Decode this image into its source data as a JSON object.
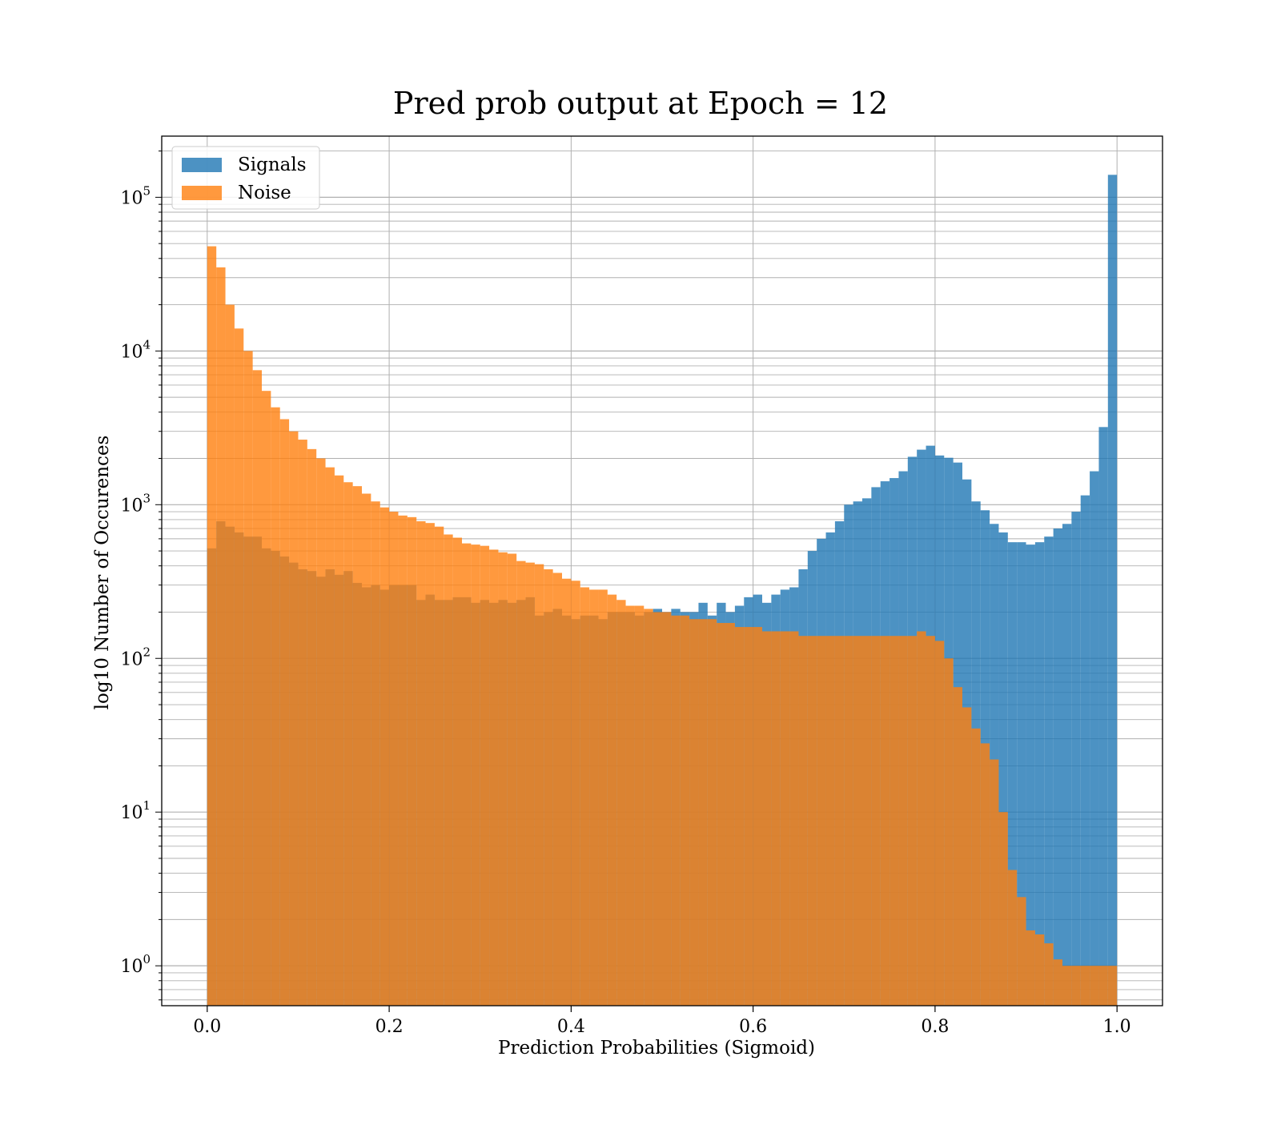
{
  "chart_data": {
    "type": "bar",
    "title": "Pred prob output at Epoch = 12",
    "xlabel": "Prediction Probabilities (Sigmoid)",
    "ylabel": "log10 Number of Occurences",
    "xlim": [
      -0.05,
      1.05
    ],
    "ylim": [
      0.55,
      250000
    ],
    "yscale": "log",
    "grid": true,
    "legend_position": "top-left",
    "bin_edges": {
      "start": 0.0,
      "end": 1.0,
      "count": 100
    },
    "x_ticks": [
      {
        "value": 0.0,
        "label": "0.0"
      },
      {
        "value": 0.2,
        "label": "0.2"
      },
      {
        "value": 0.4,
        "label": "0.4"
      },
      {
        "value": 0.6,
        "label": "0.6"
      },
      {
        "value": 0.8,
        "label": "0.8"
      },
      {
        "value": 1.0,
        "label": "1.0"
      }
    ],
    "y_ticks": [
      {
        "value": 1,
        "base": "10",
        "exponent": "0"
      },
      {
        "value": 10,
        "base": "10",
        "exponent": "1"
      },
      {
        "value": 100,
        "base": "10",
        "exponent": "2"
      },
      {
        "value": 1000,
        "base": "10",
        "exponent": "3"
      },
      {
        "value": 10000,
        "base": "10",
        "exponent": "4"
      },
      {
        "value": 100000,
        "base": "10",
        "exponent": "5"
      }
    ],
    "series": [
      {
        "name": "Signals",
        "color": "#1f77b4",
        "opacity": 0.8,
        "values": [
          520,
          780,
          720,
          660,
          620,
          620,
          520,
          500,
          460,
          420,
          380,
          370,
          340,
          380,
          350,
          370,
          310,
          290,
          300,
          280,
          300,
          300,
          300,
          240,
          260,
          240,
          240,
          250,
          250,
          230,
          240,
          230,
          240,
          230,
          240,
          250,
          190,
          200,
          210,
          190,
          180,
          190,
          190,
          180,
          200,
          200,
          200,
          190,
          200,
          210,
          200,
          210,
          200,
          200,
          230,
          190,
          230,
          200,
          220,
          250,
          260,
          230,
          260,
          280,
          290,
          380,
          500,
          600,
          660,
          780,
          1000,
          1050,
          1100,
          1300,
          1420,
          1490,
          1650,
          2050,
          2280,
          2420,
          2090,
          2020,
          1880,
          1460,
          1050,
          920,
          750,
          660,
          570,
          570,
          550,
          570,
          620,
          700,
          750,
          900,
          1150,
          1650,
          3200,
          140000
        ]
      },
      {
        "name": "Noise",
        "color": "#ff7f0e",
        "opacity": 0.8,
        "values": [
          48000,
          35000,
          20000,
          14000,
          10000,
          7500,
          5500,
          4300,
          3600,
          3000,
          2650,
          2300,
          2000,
          1750,
          1550,
          1400,
          1320,
          1180,
          1050,
          960,
          900,
          850,
          830,
          780,
          760,
          720,
          640,
          610,
          560,
          550,
          540,
          510,
          490,
          480,
          430,
          420,
          410,
          380,
          360,
          330,
          320,
          290,
          280,
          280,
          260,
          240,
          220,
          220,
          210,
          200,
          200,
          190,
          190,
          180,
          180,
          180,
          170,
          170,
          160,
          160,
          160,
          150,
          150,
          150,
          150,
          140,
          140,
          140,
          140,
          140,
          140,
          140,
          140,
          140,
          140,
          140,
          140,
          140,
          150,
          140,
          130,
          100,
          65,
          48,
          35,
          28,
          22,
          10,
          4.2,
          2.8,
          1.7,
          1.6,
          1.4,
          1.1,
          1.0,
          1.0,
          1.0,
          1.0,
          1.0,
          1.0
        ]
      }
    ]
  }
}
